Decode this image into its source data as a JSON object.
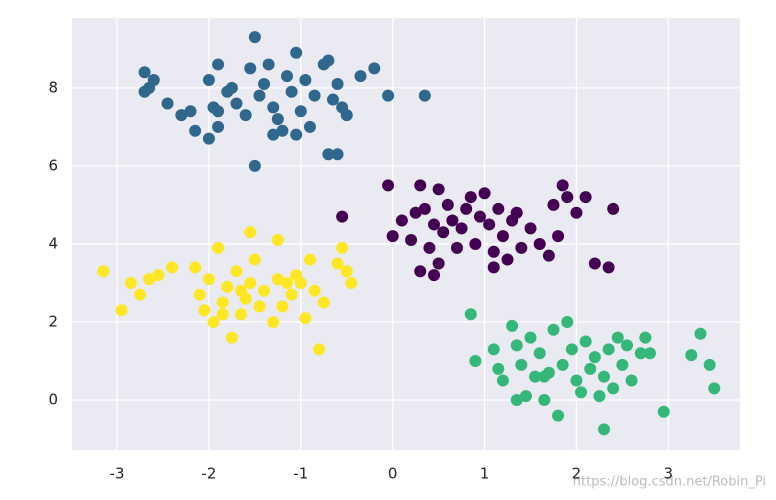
{
  "chart_data": {
    "type": "scatter",
    "xlim": [
      -3.49,
      3.78
    ],
    "ylim": [
      -1.28,
      9.79
    ],
    "xticks": [
      -3,
      -2,
      -1,
      0,
      1,
      2,
      3
    ],
    "yticks": [
      0,
      2,
      4,
      6,
      8
    ],
    "grid": true,
    "background": "#eaeaf2",
    "watermark": "https://blog.csdn.net/Robin_Pi",
    "series": [
      {
        "color": "#30678d",
        "x": [
          -2.7,
          -2.65,
          -2.6,
          -2.7,
          -2.45,
          -2.2,
          -2.15,
          -2.0,
          -1.95,
          -1.9,
          -1.9,
          -2.0,
          -1.8,
          -1.75,
          -1.7,
          -1.6,
          -1.55,
          -1.5,
          -1.45,
          -1.4,
          -1.35,
          -1.3,
          -1.25,
          -1.2,
          -1.15,
          -1.1,
          -1.05,
          -1.0,
          -0.95,
          -0.9,
          -0.85,
          -0.75,
          -0.7,
          -0.65,
          -0.6,
          -0.55,
          -0.5,
          -0.35,
          -0.2,
          -0.05,
          0.35,
          -1.5,
          -0.7,
          -0.6,
          -1.3,
          -2.3,
          -1.05,
          -1.9
        ],
        "values": [
          8.4,
          8.0,
          8.2,
          7.9,
          7.6,
          7.4,
          6.9,
          8.2,
          7.5,
          8.6,
          7.0,
          6.7,
          7.9,
          8.0,
          7.6,
          7.3,
          8.5,
          9.3,
          7.8,
          8.1,
          8.6,
          7.5,
          7.2,
          6.9,
          8.3,
          7.9,
          8.9,
          7.4,
          8.2,
          7.0,
          7.8,
          8.6,
          8.7,
          7.7,
          8.1,
          7.5,
          7.3,
          8.3,
          8.5,
          7.8,
          7.8,
          6.0,
          6.3,
          6.3,
          6.8,
          7.3,
          6.8,
          7.4
        ]
      },
      {
        "color": "#440154",
        "x": [
          -0.05,
          0.1,
          0.0,
          0.2,
          0.25,
          0.3,
          0.35,
          0.4,
          0.45,
          0.5,
          0.45,
          0.5,
          0.55,
          0.6,
          0.65,
          0.7,
          0.75,
          0.8,
          0.85,
          0.9,
          0.95,
          1.0,
          1.05,
          1.1,
          1.15,
          1.2,
          1.25,
          1.3,
          1.35,
          1.4,
          1.5,
          1.6,
          1.7,
          1.75,
          1.8,
          1.85,
          1.9,
          2.0,
          2.1,
          2.2,
          2.35,
          2.4,
          -0.55,
          0.3,
          1.1
        ],
        "values": [
          5.5,
          4.6,
          4.2,
          4.1,
          4.8,
          5.5,
          4.9,
          3.9,
          4.5,
          5.4,
          3.2,
          3.5,
          4.3,
          5.0,
          4.6,
          3.9,
          4.4,
          4.9,
          5.2,
          4.0,
          4.7,
          5.3,
          4.5,
          3.8,
          4.9,
          4.2,
          3.6,
          4.6,
          4.8,
          3.9,
          4.4,
          4.0,
          3.7,
          5.0,
          4.2,
          5.5,
          5.2,
          4.8,
          5.2,
          3.5,
          3.4,
          4.9,
          4.7,
          3.3,
          3.4
        ]
      },
      {
        "color": "#35b779",
        "x": [
          0.85,
          0.9,
          1.1,
          1.15,
          1.2,
          1.3,
          1.35,
          1.4,
          1.45,
          1.5,
          1.55,
          1.6,
          1.65,
          1.7,
          1.75,
          1.8,
          1.85,
          1.9,
          1.95,
          2.0,
          2.05,
          2.1,
          2.15,
          2.2,
          2.3,
          2.35,
          2.4,
          2.45,
          2.5,
          2.55,
          2.6,
          2.7,
          2.75,
          2.8,
          2.3,
          2.95,
          3.25,
          3.35,
          3.45,
          3.5,
          1.35,
          1.65,
          2.25
        ],
        "values": [
          2.2,
          1.0,
          1.3,
          0.8,
          0.5,
          1.9,
          1.4,
          0.9,
          0.1,
          1.6,
          0.6,
          1.2,
          0.0,
          0.7,
          1.8,
          -0.4,
          0.9,
          2.0,
          1.3,
          0.5,
          0.2,
          1.5,
          0.8,
          1.1,
          0.6,
          1.3,
          0.3,
          1.6,
          0.9,
          1.4,
          0.5,
          1.2,
          1.6,
          1.2,
          -0.75,
          -0.3,
          1.15,
          1.7,
          0.9,
          0.3,
          0.0,
          0.6,
          0.1
        ]
      },
      {
        "color": "#fde725",
        "x": [
          -3.15,
          -2.95,
          -2.85,
          -2.75,
          -2.65,
          -2.55,
          -2.4,
          -2.15,
          -2.1,
          -2.05,
          -2.0,
          -1.95,
          -1.9,
          -1.85,
          -1.8,
          -1.75,
          -1.7,
          -1.65,
          -1.6,
          -1.55,
          -1.55,
          -1.5,
          -1.45,
          -1.4,
          -1.3,
          -1.25,
          -1.2,
          -1.15,
          -1.1,
          -1.05,
          -1.0,
          -0.95,
          -0.9,
          -0.85,
          -0.8,
          -0.75,
          -0.6,
          -0.55,
          -0.5,
          -0.45,
          -1.65,
          -1.85,
          -1.25
        ],
        "values": [
          3.3,
          2.3,
          3.0,
          2.7,
          3.1,
          3.2,
          3.4,
          3.4,
          2.7,
          2.3,
          3.1,
          2.0,
          3.9,
          2.5,
          2.9,
          1.6,
          3.3,
          2.2,
          2.6,
          4.3,
          3.0,
          3.6,
          2.4,
          2.8,
          2.0,
          4.1,
          2.4,
          3.0,
          2.7,
          3.2,
          3.0,
          2.1,
          3.6,
          2.8,
          1.3,
          2.5,
          3.5,
          3.9,
          3.3,
          3.0,
          2.8,
          2.2,
          3.1
        ]
      }
    ]
  }
}
